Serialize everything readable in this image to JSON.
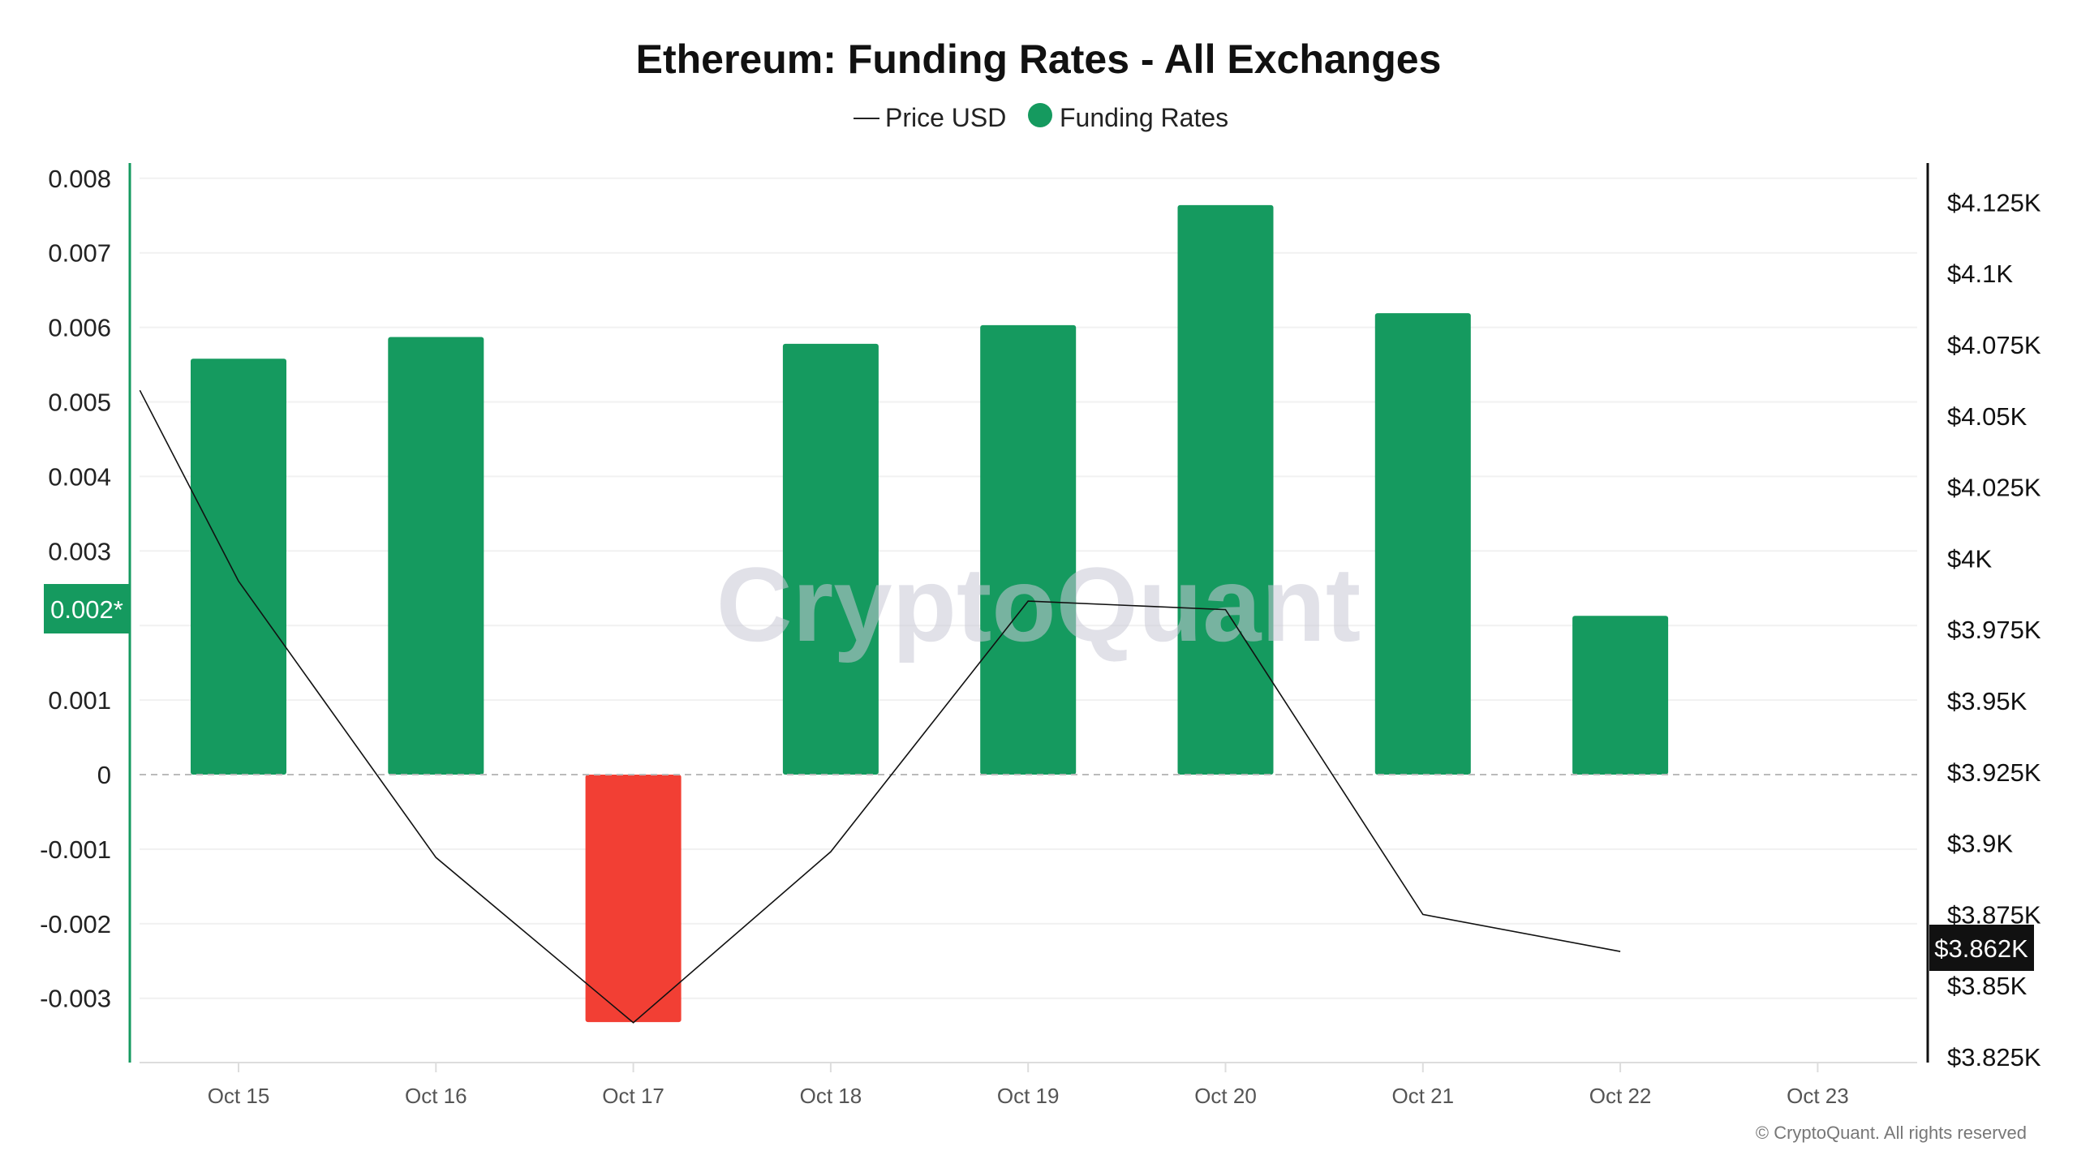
{
  "title": "Ethereum: Funding Rates - All Exchanges",
  "legend": {
    "price_label": "Price USD",
    "funding_label": "Funding Rates"
  },
  "watermark": "CryptoQuant",
  "copyright": "© CryptoQuant. All rights reserved",
  "colors": {
    "positive": "#159a5f",
    "negative": "#f23f34",
    "price_line": "#111111",
    "left_axis": "#159a5f"
  },
  "highlight_left": "0.002*",
  "highlight_right": "$3.862K",
  "chart_data": {
    "type": "bar",
    "title": "Ethereum: Funding Rates - All Exchanges",
    "categories": [
      "Oct 15",
      "Oct 16",
      "Oct 17",
      "Oct 18",
      "Oct 19",
      "Oct 20",
      "Oct 21",
      "Oct 22",
      "Oct 23"
    ],
    "series": [
      {
        "name": "Funding Rates",
        "type": "bar",
        "axis": "left",
        "values": [
          0.00558,
          0.00587,
          -0.00332,
          0.00578,
          0.00603,
          0.00764,
          0.00619,
          0.00213,
          null
        ]
      },
      {
        "name": "Price USD",
        "type": "line",
        "axis": "right",
        "points": [
          [
            -0.5,
            4059
          ],
          [
            0,
            3992
          ],
          [
            1,
            3895
          ],
          [
            2,
            3837
          ],
          [
            3,
            3897
          ],
          [
            4,
            3985
          ],
          [
            5,
            3982
          ],
          [
            6,
            3875
          ],
          [
            7,
            3862
          ]
        ]
      }
    ],
    "y_left": {
      "ticks": [
        "0.008",
        "0.007",
        "0.006",
        "0.005",
        "0.004",
        "0.003",
        "0.001",
        "0",
        "-0.001",
        "-0.002",
        "-0.003"
      ],
      "tick_values": [
        0.008,
        0.007,
        0.006,
        0.005,
        0.004,
        0.003,
        0.001,
        0,
        -0.001,
        -0.002,
        -0.003
      ],
      "ylim": [
        -0.0039,
        0.0082
      ]
    },
    "y_right": {
      "ticks": [
        "$4.125K",
        "$4.1K",
        "$4.075K",
        "$4.05K",
        "$4.025K",
        "$4K",
        "$3.975K",
        "$3.95K",
        "$3.925K",
        "$3.9K",
        "$3.875K",
        "$3.85K",
        "$3.825K"
      ],
      "tick_values": [
        4125,
        4100,
        4075,
        4050,
        4025,
        4000,
        3975,
        3950,
        3925,
        3900,
        3875,
        3850,
        3825
      ],
      "ylim": [
        3825,
        4140
      ]
    },
    "legend_position": "top-center",
    "grid": true
  }
}
